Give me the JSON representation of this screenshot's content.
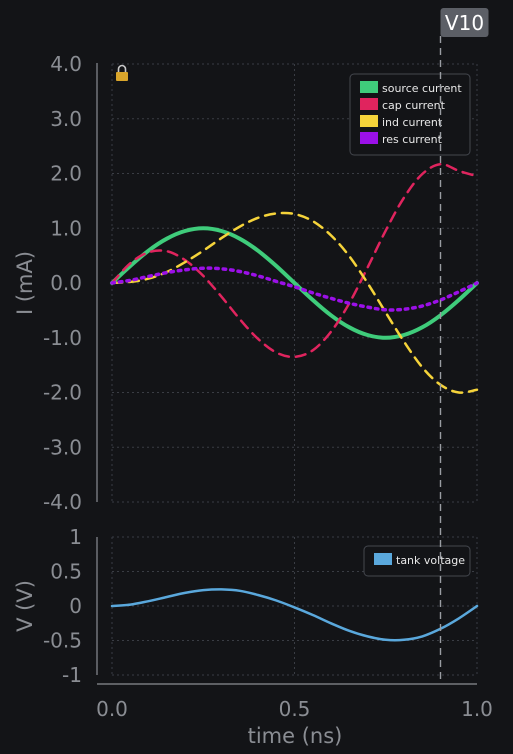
{
  "cursor": {
    "label": "V10",
    "x": 0.9
  },
  "colors": {
    "background": "#131417",
    "text": "#8a8d93",
    "grid": "#3a3d44",
    "axis": "#8a8d93",
    "source": "#3fcc7b",
    "cap": "#e0245e",
    "ind": "#f5d33a",
    "res": "#9b10e8",
    "tank": "#5aa8dc",
    "lock": "#d9a52b"
  },
  "chart_data": [
    {
      "type": "line",
      "xlabel": "time (ns)",
      "ylabel": "I (mA)",
      "xlim": [
        0.0,
        1.0
      ],
      "ylim": [
        -4.0,
        4.0
      ],
      "grid": true,
      "legend_position": "top-right",
      "lock_icon": "padlock-icon",
      "yticks": [
        "4.0",
        "3.0",
        "2.0",
        "1.0",
        "0.0",
        "-1.0",
        "-2.0",
        "-3.0",
        "-4.0"
      ],
      "ytick_values": [
        4,
        3,
        2,
        1,
        0,
        -1,
        -2,
        -3,
        -4
      ],
      "x": [
        0.0,
        0.05,
        0.1,
        0.15,
        0.2,
        0.25,
        0.3,
        0.35,
        0.4,
        0.45,
        0.5,
        0.55,
        0.6,
        0.65,
        0.7,
        0.75,
        0.8,
        0.85,
        0.9,
        0.95,
        1.0
      ],
      "series": [
        {
          "name": "source current",
          "color": "source",
          "style": "solid",
          "width": 4,
          "values": [
            0.0,
            0.31,
            0.59,
            0.81,
            0.95,
            1.0,
            0.95,
            0.81,
            0.59,
            0.31,
            0.0,
            -0.31,
            -0.59,
            -0.81,
            -0.95,
            -1.0,
            -0.95,
            -0.81,
            -0.59,
            -0.31,
            0.0
          ]
        },
        {
          "name": "cap current",
          "color": "cap",
          "style": "dashed",
          "width": 2.5,
          "values": [
            0.0,
            0.36,
            0.56,
            0.58,
            0.42,
            0.13,
            -0.25,
            -0.66,
            -1.02,
            -1.27,
            -1.35,
            -1.23,
            -0.89,
            -0.37,
            0.28,
            0.96,
            1.56,
            1.99,
            2.17,
            2.05,
            1.95
          ]
        },
        {
          "name": "ind current",
          "color": "ind",
          "style": "dashed",
          "width": 2.5,
          "values": [
            0.0,
            0.02,
            0.08,
            0.2,
            0.38,
            0.59,
            0.82,
            1.03,
            1.19,
            1.27,
            1.26,
            1.13,
            0.87,
            0.49,
            0.0,
            -0.54,
            -1.07,
            -1.54,
            -1.86,
            -2.0,
            -1.95
          ]
        },
        {
          "name": "res current",
          "color": "res",
          "style": "dotted",
          "width": 3.5,
          "values": [
            0.0,
            0.05,
            0.12,
            0.19,
            0.24,
            0.27,
            0.26,
            0.21,
            0.13,
            0.03,
            -0.07,
            -0.18,
            -0.28,
            -0.37,
            -0.44,
            -0.49,
            -0.48,
            -0.42,
            -0.31,
            -0.16,
            0.0
          ]
        }
      ]
    },
    {
      "type": "line",
      "xlabel": "time (ns)",
      "ylabel": "V (V)",
      "xlim": [
        0.0,
        1.0
      ],
      "ylim": [
        -1.0,
        1.0
      ],
      "grid": true,
      "legend_position": "top-right",
      "xticks": [
        "0.0",
        "0.5",
        "1.0"
      ],
      "xtick_values": [
        0.0,
        0.5,
        1.0
      ],
      "yticks": [
        "1",
        "0.5",
        "0",
        "-0.5",
        "-1"
      ],
      "ytick_values": [
        1,
        0.5,
        0,
        -0.5,
        -1
      ],
      "x": [
        0.0,
        0.05,
        0.1,
        0.15,
        0.2,
        0.25,
        0.3,
        0.35,
        0.4,
        0.45,
        0.5,
        0.55,
        0.6,
        0.65,
        0.7,
        0.75,
        0.8,
        0.85,
        0.9,
        0.95,
        1.0
      ],
      "series": [
        {
          "name": "tank voltage",
          "color": "tank",
          "style": "solid",
          "width": 2.5,
          "values": [
            0.0,
            0.02,
            0.07,
            0.13,
            0.19,
            0.23,
            0.24,
            0.22,
            0.16,
            0.08,
            -0.02,
            -0.13,
            -0.25,
            -0.36,
            -0.44,
            -0.49,
            -0.49,
            -0.44,
            -0.33,
            -0.18,
            0.0
          ]
        }
      ]
    }
  ]
}
